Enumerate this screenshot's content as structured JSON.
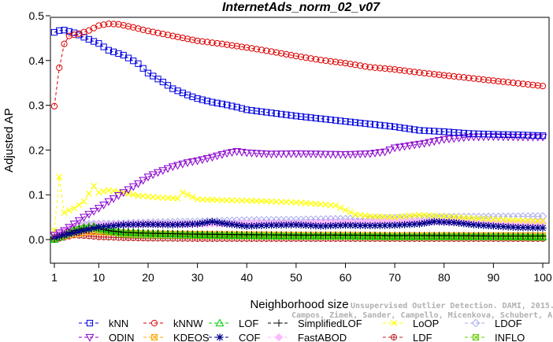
{
  "chart_data": {
    "type": "line",
    "title": "InternetAds_norm_02_v07",
    "xlabel": "Neighborhood size",
    "ylabel": "Adjusted AP",
    "xlim": [
      1,
      100
    ],
    "ylim": [
      0,
      0.5
    ],
    "xticks": [
      1,
      10,
      20,
      30,
      40,
      50,
      60,
      70,
      80,
      90,
      100
    ],
    "yticks": [
      0.0,
      0.1,
      0.2,
      0.3,
      0.4,
      0.5
    ],
    "xtick_labels": [
      "1",
      "10",
      "20",
      "30",
      "40",
      "50",
      "60",
      "70",
      "80",
      "90",
      "100"
    ],
    "ytick_labels": [
      "0.0",
      "0.1",
      "0.2",
      "0.3",
      "0.4",
      "0.5"
    ],
    "grid": false,
    "legend_position": "bottom",
    "series": [
      {
        "name": "kNN",
        "color": "#0000dd",
        "marker": "square",
        "dash": "4,3",
        "points": [
          [
            1,
            0.463
          ],
          [
            2,
            0.467
          ],
          [
            3,
            0.468
          ],
          [
            5,
            0.462
          ],
          [
            7,
            0.452
          ],
          [
            10,
            0.438
          ],
          [
            12,
            0.423
          ],
          [
            15,
            0.412
          ],
          [
            18,
            0.393
          ],
          [
            20,
            0.372
          ],
          [
            23,
            0.352
          ],
          [
            25,
            0.337
          ],
          [
            28,
            0.323
          ],
          [
            30,
            0.315
          ],
          [
            33,
            0.307
          ],
          [
            35,
            0.303
          ],
          [
            38,
            0.296
          ],
          [
            40,
            0.29
          ],
          [
            45,
            0.283
          ],
          [
            50,
            0.276
          ],
          [
            55,
            0.27
          ],
          [
            60,
            0.264
          ],
          [
            65,
            0.258
          ],
          [
            70,
            0.252
          ],
          [
            75,
            0.244
          ],
          [
            80,
            0.241
          ],
          [
            85,
            0.237
          ],
          [
            90,
            0.235
          ],
          [
            95,
            0.234
          ],
          [
            100,
            0.232
          ]
        ]
      },
      {
        "name": "kNNW",
        "color": "#dd0000",
        "marker": "circle",
        "dash": "4,3",
        "points": [
          [
            1,
            0.298
          ],
          [
            2,
            0.384
          ],
          [
            3,
            0.437
          ],
          [
            4,
            0.455
          ],
          [
            6,
            0.46
          ],
          [
            8,
            0.467
          ],
          [
            10,
            0.478
          ],
          [
            12,
            0.482
          ],
          [
            14,
            0.481
          ],
          [
            17,
            0.474
          ],
          [
            20,
            0.466
          ],
          [
            25,
            0.455
          ],
          [
            30,
            0.444
          ],
          [
            35,
            0.437
          ],
          [
            40,
            0.429
          ],
          [
            45,
            0.42
          ],
          [
            50,
            0.41
          ],
          [
            55,
            0.401
          ],
          [
            60,
            0.394
          ],
          [
            65,
            0.385
          ],
          [
            70,
            0.38
          ],
          [
            75,
            0.373
          ],
          [
            80,
            0.367
          ],
          [
            85,
            0.361
          ],
          [
            90,
            0.355
          ],
          [
            95,
            0.349
          ],
          [
            100,
            0.343
          ]
        ]
      },
      {
        "name": "LOF",
        "color": "#00cc00",
        "marker": "triangle-up",
        "dash": "4,3",
        "points": [
          [
            1,
            0.0
          ],
          [
            3,
            0.01
          ],
          [
            5,
            0.022
          ],
          [
            7,
            0.028
          ],
          [
            9,
            0.03
          ],
          [
            12,
            0.022
          ],
          [
            15,
            0.017
          ],
          [
            20,
            0.014
          ],
          [
            30,
            0.011
          ],
          [
            40,
            0.009
          ],
          [
            50,
            0.008
          ],
          [
            60,
            0.008
          ],
          [
            70,
            0.007
          ],
          [
            80,
            0.007
          ],
          [
            90,
            0.007
          ],
          [
            100,
            0.006
          ]
        ]
      },
      {
        "name": "SimplifiedLOF",
        "color": "#000000",
        "marker": "plus",
        "dash": "4,3",
        "points": [
          [
            1,
            0.002
          ],
          [
            3,
            0.012
          ],
          [
            5,
            0.02
          ],
          [
            7,
            0.025
          ],
          [
            9,
            0.027
          ],
          [
            12,
            0.02
          ],
          [
            15,
            0.016
          ],
          [
            20,
            0.014
          ],
          [
            30,
            0.012
          ],
          [
            40,
            0.011
          ],
          [
            50,
            0.01
          ],
          [
            60,
            0.01
          ],
          [
            70,
            0.009
          ],
          [
            80,
            0.009
          ],
          [
            90,
            0.008
          ],
          [
            100,
            0.008
          ]
        ]
      },
      {
        "name": "LoOP",
        "color": "#ffff00",
        "marker": "x",
        "dash": "4,3",
        "points": [
          [
            1,
            0.02
          ],
          [
            2,
            0.14
          ],
          [
            3,
            0.06
          ],
          [
            5,
            0.07
          ],
          [
            7,
            0.085
          ],
          [
            9,
            0.12
          ],
          [
            10,
            0.105
          ],
          [
            12,
            0.11
          ],
          [
            15,
            0.105
          ],
          [
            18,
            0.098
          ],
          [
            22,
            0.094
          ],
          [
            26,
            0.092
          ],
          [
            27,
            0.105
          ],
          [
            30,
            0.09
          ],
          [
            35,
            0.088
          ],
          [
            40,
            0.087
          ],
          [
            45,
            0.085
          ],
          [
            50,
            0.083
          ],
          [
            55,
            0.079
          ],
          [
            58,
            0.076
          ],
          [
            62,
            0.056
          ],
          [
            65,
            0.052
          ],
          [
            70,
            0.05
          ],
          [
            75,
            0.055
          ],
          [
            80,
            0.052
          ],
          [
            85,
            0.048
          ],
          [
            90,
            0.045
          ],
          [
            95,
            0.043
          ],
          [
            100,
            0.041
          ]
        ]
      },
      {
        "name": "LDOF",
        "color": "#aaaaee",
        "marker": "diamond",
        "dash": "4,3",
        "points": [
          [
            1,
            0.008
          ],
          [
            4,
            0.02
          ],
          [
            7,
            0.035
          ],
          [
            10,
            0.035
          ],
          [
            15,
            0.036
          ],
          [
            20,
            0.038
          ],
          [
            30,
            0.04
          ],
          [
            40,
            0.043
          ],
          [
            50,
            0.044
          ],
          [
            60,
            0.046
          ],
          [
            70,
            0.048
          ],
          [
            80,
            0.05
          ],
          [
            90,
            0.051
          ],
          [
            100,
            0.052
          ]
        ]
      },
      {
        "name": "ODIN",
        "color": "#8800cc",
        "marker": "triangle-down",
        "dash": "4,3",
        "points": [
          [
            1,
            0.01
          ],
          [
            3,
            0.02
          ],
          [
            5,
            0.035
          ],
          [
            7,
            0.05
          ],
          [
            10,
            0.07
          ],
          [
            12,
            0.085
          ],
          [
            15,
            0.105
          ],
          [
            18,
            0.125
          ],
          [
            20,
            0.14
          ],
          [
            22,
            0.15
          ],
          [
            25,
            0.163
          ],
          [
            28,
            0.172
          ],
          [
            30,
            0.176
          ],
          [
            33,
            0.184
          ],
          [
            36,
            0.193
          ],
          [
            38,
            0.197
          ],
          [
            40,
            0.194
          ],
          [
            45,
            0.191
          ],
          [
            50,
            0.192
          ],
          [
            55,
            0.191
          ],
          [
            60,
            0.19
          ],
          [
            65,
            0.192
          ],
          [
            68,
            0.196
          ],
          [
            70,
            0.205
          ],
          [
            73,
            0.21
          ],
          [
            76,
            0.215
          ],
          [
            80,
            0.224
          ],
          [
            85,
            0.229
          ],
          [
            90,
            0.23
          ],
          [
            95,
            0.229
          ],
          [
            100,
            0.229
          ]
        ]
      },
      {
        "name": "KDEOS",
        "color": "#ffaa00",
        "marker": "square-x",
        "dash": "4,3",
        "points": [
          [
            1,
            0.003
          ],
          [
            3,
            0.008
          ],
          [
            5,
            0.012
          ],
          [
            8,
            0.018
          ],
          [
            10,
            0.017
          ],
          [
            15,
            0.015
          ],
          [
            20,
            0.013
          ],
          [
            30,
            0.012
          ],
          [
            40,
            0.011
          ],
          [
            50,
            0.01
          ],
          [
            60,
            0.01
          ],
          [
            70,
            0.009
          ],
          [
            80,
            0.009
          ],
          [
            90,
            0.009
          ],
          [
            100,
            0.009
          ]
        ]
      },
      {
        "name": "COF",
        "color": "#000088",
        "marker": "asterisk",
        "dash": "4,3",
        "points": [
          [
            1,
            0.005
          ],
          [
            3,
            0.01
          ],
          [
            5,
            0.015
          ],
          [
            7,
            0.02
          ],
          [
            10,
            0.028
          ],
          [
            12,
            0.03
          ],
          [
            15,
            0.033
          ],
          [
            20,
            0.034
          ],
          [
            25,
            0.033
          ],
          [
            30,
            0.035
          ],
          [
            33,
            0.04
          ],
          [
            36,
            0.035
          ],
          [
            40,
            0.03
          ],
          [
            45,
            0.032
          ],
          [
            50,
            0.033
          ],
          [
            55,
            0.03
          ],
          [
            60,
            0.032
          ],
          [
            65,
            0.031
          ],
          [
            70,
            0.032
          ],
          [
            75,
            0.035
          ],
          [
            78,
            0.04
          ],
          [
            82,
            0.038
          ],
          [
            86,
            0.033
          ],
          [
            90,
            0.03
          ],
          [
            95,
            0.027
          ],
          [
            100,
            0.026
          ]
        ]
      },
      {
        "name": "FastABOD",
        "color": "#ffbbff",
        "marker": "diamond-filled",
        "dash": "4,3",
        "points": [
          [
            1,
            0.01
          ],
          [
            4,
            0.025
          ],
          [
            7,
            0.032
          ],
          [
            10,
            0.033
          ],
          [
            15,
            0.034
          ],
          [
            20,
            0.035
          ],
          [
            30,
            0.035
          ],
          [
            40,
            0.036
          ],
          [
            50,
            0.036
          ],
          [
            60,
            0.038
          ],
          [
            70,
            0.04
          ],
          [
            80,
            0.04
          ],
          [
            90,
            0.038
          ],
          [
            100,
            0.037
          ]
        ]
      },
      {
        "name": "LDF",
        "color": "#bb2222",
        "marker": "circle-plus",
        "dash": "4,3",
        "points": [
          [
            1,
            0.0
          ],
          [
            3,
            0.005
          ],
          [
            5,
            0.01
          ],
          [
            8,
            0.008
          ],
          [
            10,
            0.006
          ],
          [
            15,
            0.004
          ],
          [
            20,
            0.003
          ],
          [
            30,
            0.002
          ],
          [
            40,
            0.002
          ],
          [
            50,
            0.002
          ],
          [
            60,
            0.002
          ],
          [
            70,
            0.002
          ],
          [
            80,
            0.002
          ],
          [
            90,
            0.002
          ],
          [
            100,
            0.002
          ]
        ]
      },
      {
        "name": "INFLO",
        "color": "#66cc00",
        "marker": "square-x",
        "dash": "4,3",
        "points": [
          [
            1,
            0.002
          ],
          [
            3,
            0.01
          ],
          [
            5,
            0.02
          ],
          [
            7,
            0.025
          ],
          [
            9,
            0.024
          ],
          [
            12,
            0.018
          ],
          [
            15,
            0.012
          ],
          [
            20,
            0.01
          ],
          [
            30,
            0.009
          ],
          [
            40,
            0.008
          ],
          [
            50,
            0.007
          ],
          [
            60,
            0.007
          ],
          [
            70,
            0.006
          ],
          [
            80,
            0.006
          ],
          [
            90,
            0.006
          ],
          [
            100,
            0.005
          ]
        ]
      }
    ]
  },
  "watermark": {
    "line1": "Unsupervised Outlier Detection. DAMI, 2015.",
    "line2": "Campos, Zimek, Sander, Campello, Micenkova, Schubert, Assent, Houle"
  },
  "legend_rows": [
    [
      "kNN",
      "kNNW",
      "LOF",
      "SimplifiedLOF",
      "LoOP",
      "LDOF"
    ],
    [
      "ODIN",
      "KDEOS",
      "COF",
      "FastABOD",
      "LDF",
      "INFLO"
    ]
  ]
}
